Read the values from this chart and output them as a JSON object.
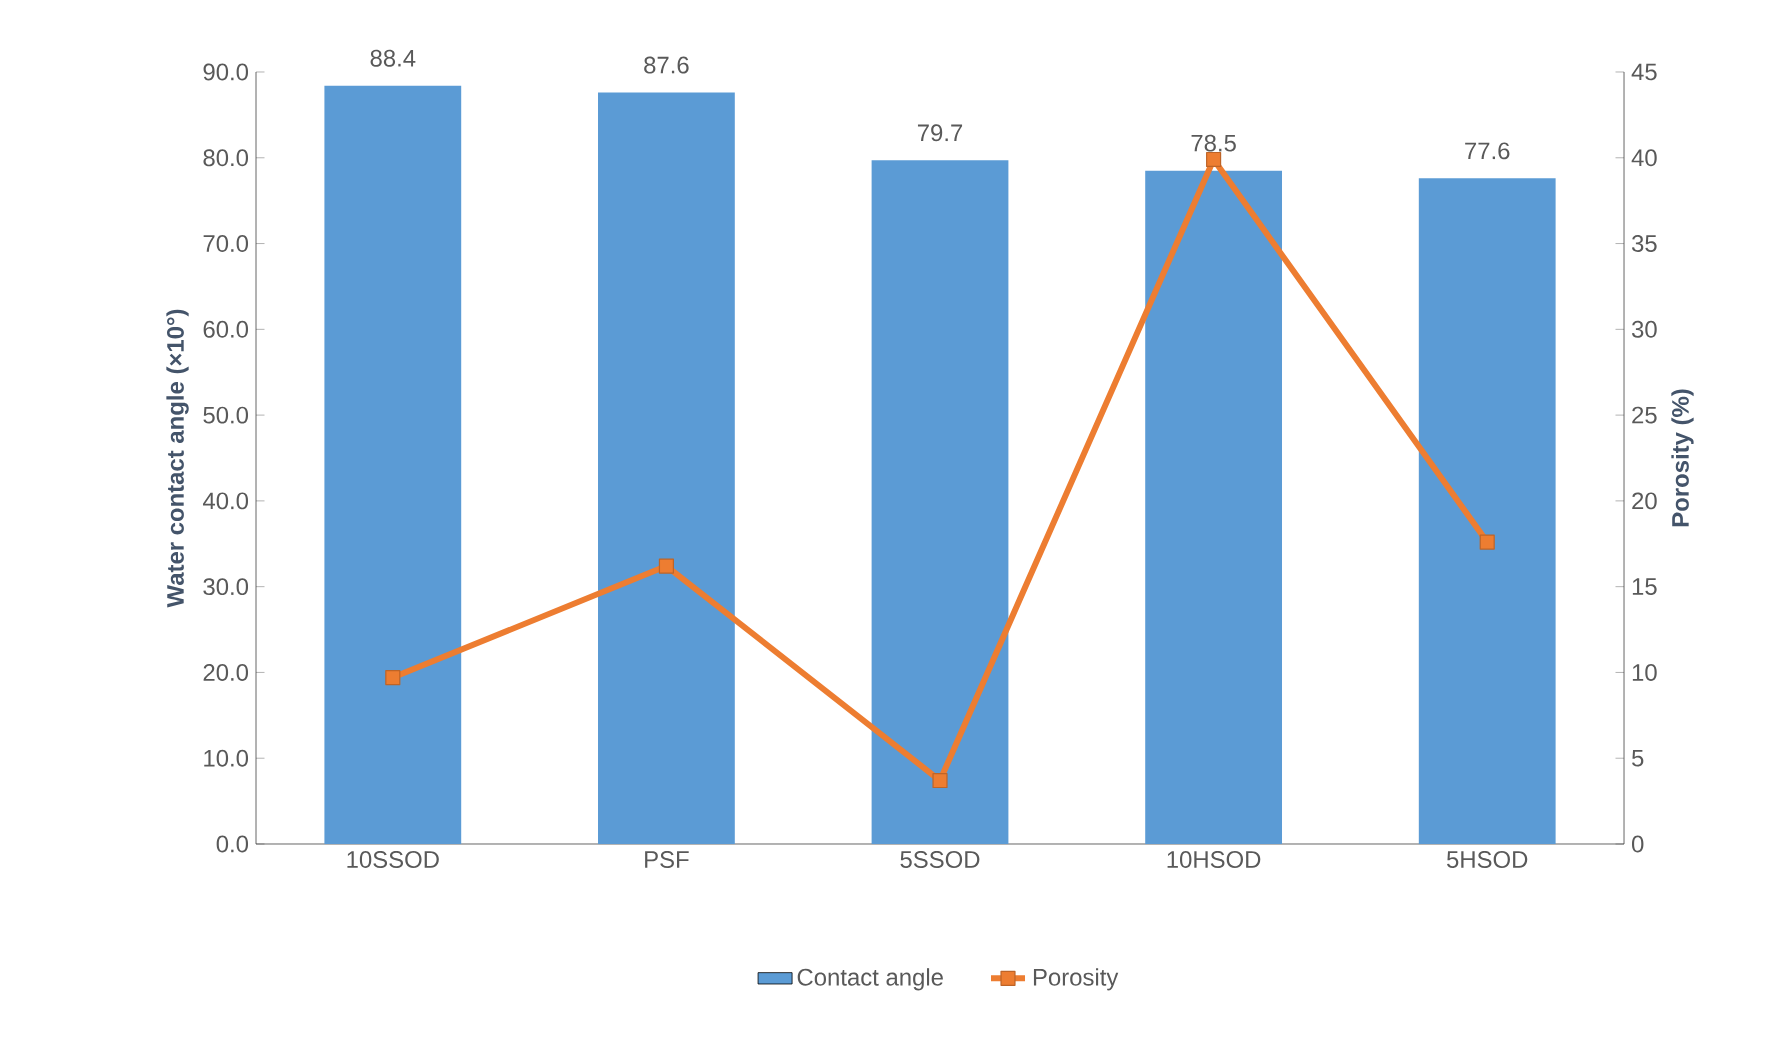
{
  "chart_data": {
    "type": "bar",
    "categories": [
      "10SSOD",
      "PSF",
      "5SSOD",
      "10HSOD",
      "5HSOD"
    ],
    "series": [
      {
        "name": "Contact angle",
        "color": "#5b9bd5",
        "values": [
          88.4,
          87.6,
          79.7,
          78.5,
          77.6
        ],
        "value_labels": [
          "88.4",
          "87.6",
          "79.7",
          "78.5",
          "77.6"
        ]
      },
      {
        "name": "Porosity",
        "type": "line",
        "axis": "y2",
        "color": "#ed7d31",
        "values": [
          9.7,
          16.2,
          3.7,
          39.9,
          17.6
        ]
      }
    ],
    "ylabel": "Water contact angle (×10°)",
    "y2label": "Porosity (%)",
    "ylim": [
      0,
      90
    ],
    "yticks": [
      {
        "value": 0,
        "label": "0.0"
      },
      {
        "value": 10,
        "label": "10.0"
      },
      {
        "value": 20,
        "label": "20.0"
      },
      {
        "value": 30,
        "label": "30.0"
      },
      {
        "value": 40,
        "label": "40.0"
      },
      {
        "value": 50,
        "label": "50.0"
      },
      {
        "value": 60,
        "label": "60.0"
      },
      {
        "value": 70,
        "label": "70.0"
      },
      {
        "value": 80,
        "label": "80.0"
      },
      {
        "value": 90,
        "label": "90.0"
      }
    ],
    "y2lim": [
      0,
      45
    ],
    "y2ticks": [
      0,
      5,
      10,
      15,
      20,
      25,
      30,
      35,
      40,
      45
    ],
    "grid": false,
    "legend": "bottom",
    "marker": "square"
  }
}
